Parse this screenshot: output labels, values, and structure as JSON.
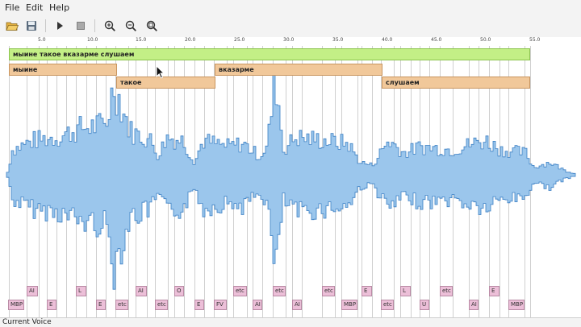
{
  "menu": [
    "File",
    "Edit",
    "Help"
  ],
  "toolbar": {
    "icons": [
      "open-folder-icon",
      "save-icon",
      "play-icon",
      "stop-icon",
      "zoom-in-icon",
      "zoom-out-icon",
      "zoom-fit-icon"
    ]
  },
  "ruler": {
    "ticks": [
      "5.0",
      "10.0",
      "15.0",
      "20.0",
      "25.0",
      "30.0",
      "35.0",
      "40.0",
      "45.0",
      "50.0",
      "55.0"
    ]
  },
  "tiers": {
    "sentence": "мыине такое вказарме слушаем",
    "words": [
      "мыине",
      "такое",
      "вказарме",
      "слушаем"
    ]
  },
  "phones_upper": [
    "AI",
    "L",
    "AI",
    "O",
    "etc",
    "etc",
    "etc",
    "E",
    "L",
    "etc",
    "E"
  ],
  "phones_lower": [
    "MBP",
    "E",
    "E",
    "etc",
    "etc",
    "E",
    "FV",
    "AI",
    "AI",
    "MBP",
    "etc",
    "U",
    "AI",
    "MBP"
  ],
  "status": {
    "label": "Current Voice"
  },
  "colors": {
    "waveform": "#9bc6ec",
    "waveform_stroke": "#3b7fc4",
    "sentence_tier": "#c3ef86",
    "word_tier": "#f1c89a",
    "phone": "#ecbfd8"
  }
}
